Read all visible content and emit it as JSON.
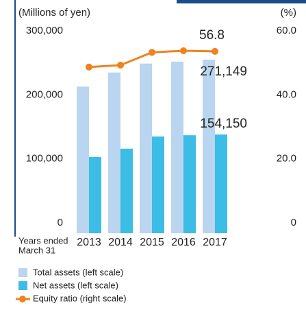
{
  "chart_data": {
    "type": "bar-line",
    "ylabel": "(Millions of yen)",
    "y2label": "(%)",
    "xlabel_lines": [
      "Years ended",
      "March 31"
    ],
    "categories": [
      "2013",
      "2014",
      "2015",
      "2016",
      "2017"
    ],
    "ylim": [
      0,
      300000
    ],
    "yticks": [
      0,
      {
        "value": 100000,
        "label": "100,000"
      },
      {
        "value": 200000,
        "label": "200,000"
      },
      {
        "value": 300000,
        "label": "300,000"
      }
    ],
    "y2lim": [
      0,
      60
    ],
    "y2ticks": [
      {
        "value": 0,
        "label": "0"
      },
      {
        "value": 20,
        "label": "20.0"
      },
      {
        "value": 40,
        "label": "40.0"
      },
      {
        "value": 60,
        "label": "60.0"
      }
    ],
    "series": [
      {
        "name": "Total assets (left scale)",
        "color": "#b9d5ef",
        "type": "bar",
        "values": [
          229000,
          251000,
          265000,
          268000,
          271149
        ],
        "value_labels": [
          null,
          null,
          null,
          null,
          "271,149"
        ]
      },
      {
        "name": "Net assets (left scale)",
        "color": "#3bbde6",
        "type": "bar",
        "values": [
          119000,
          132000,
          151000,
          153000,
          154150
        ],
        "value_labels": [
          null,
          null,
          null,
          null,
          "154,150"
        ]
      },
      {
        "name": "Equity ratio (right scale)",
        "color": "#f0821e",
        "type": "line",
        "axis": "y2",
        "values": [
          51.9,
          52.5,
          56.5,
          57.0,
          56.8
        ],
        "value_labels": [
          null,
          null,
          null,
          null,
          "56.8"
        ]
      }
    ],
    "grid": false
  }
}
